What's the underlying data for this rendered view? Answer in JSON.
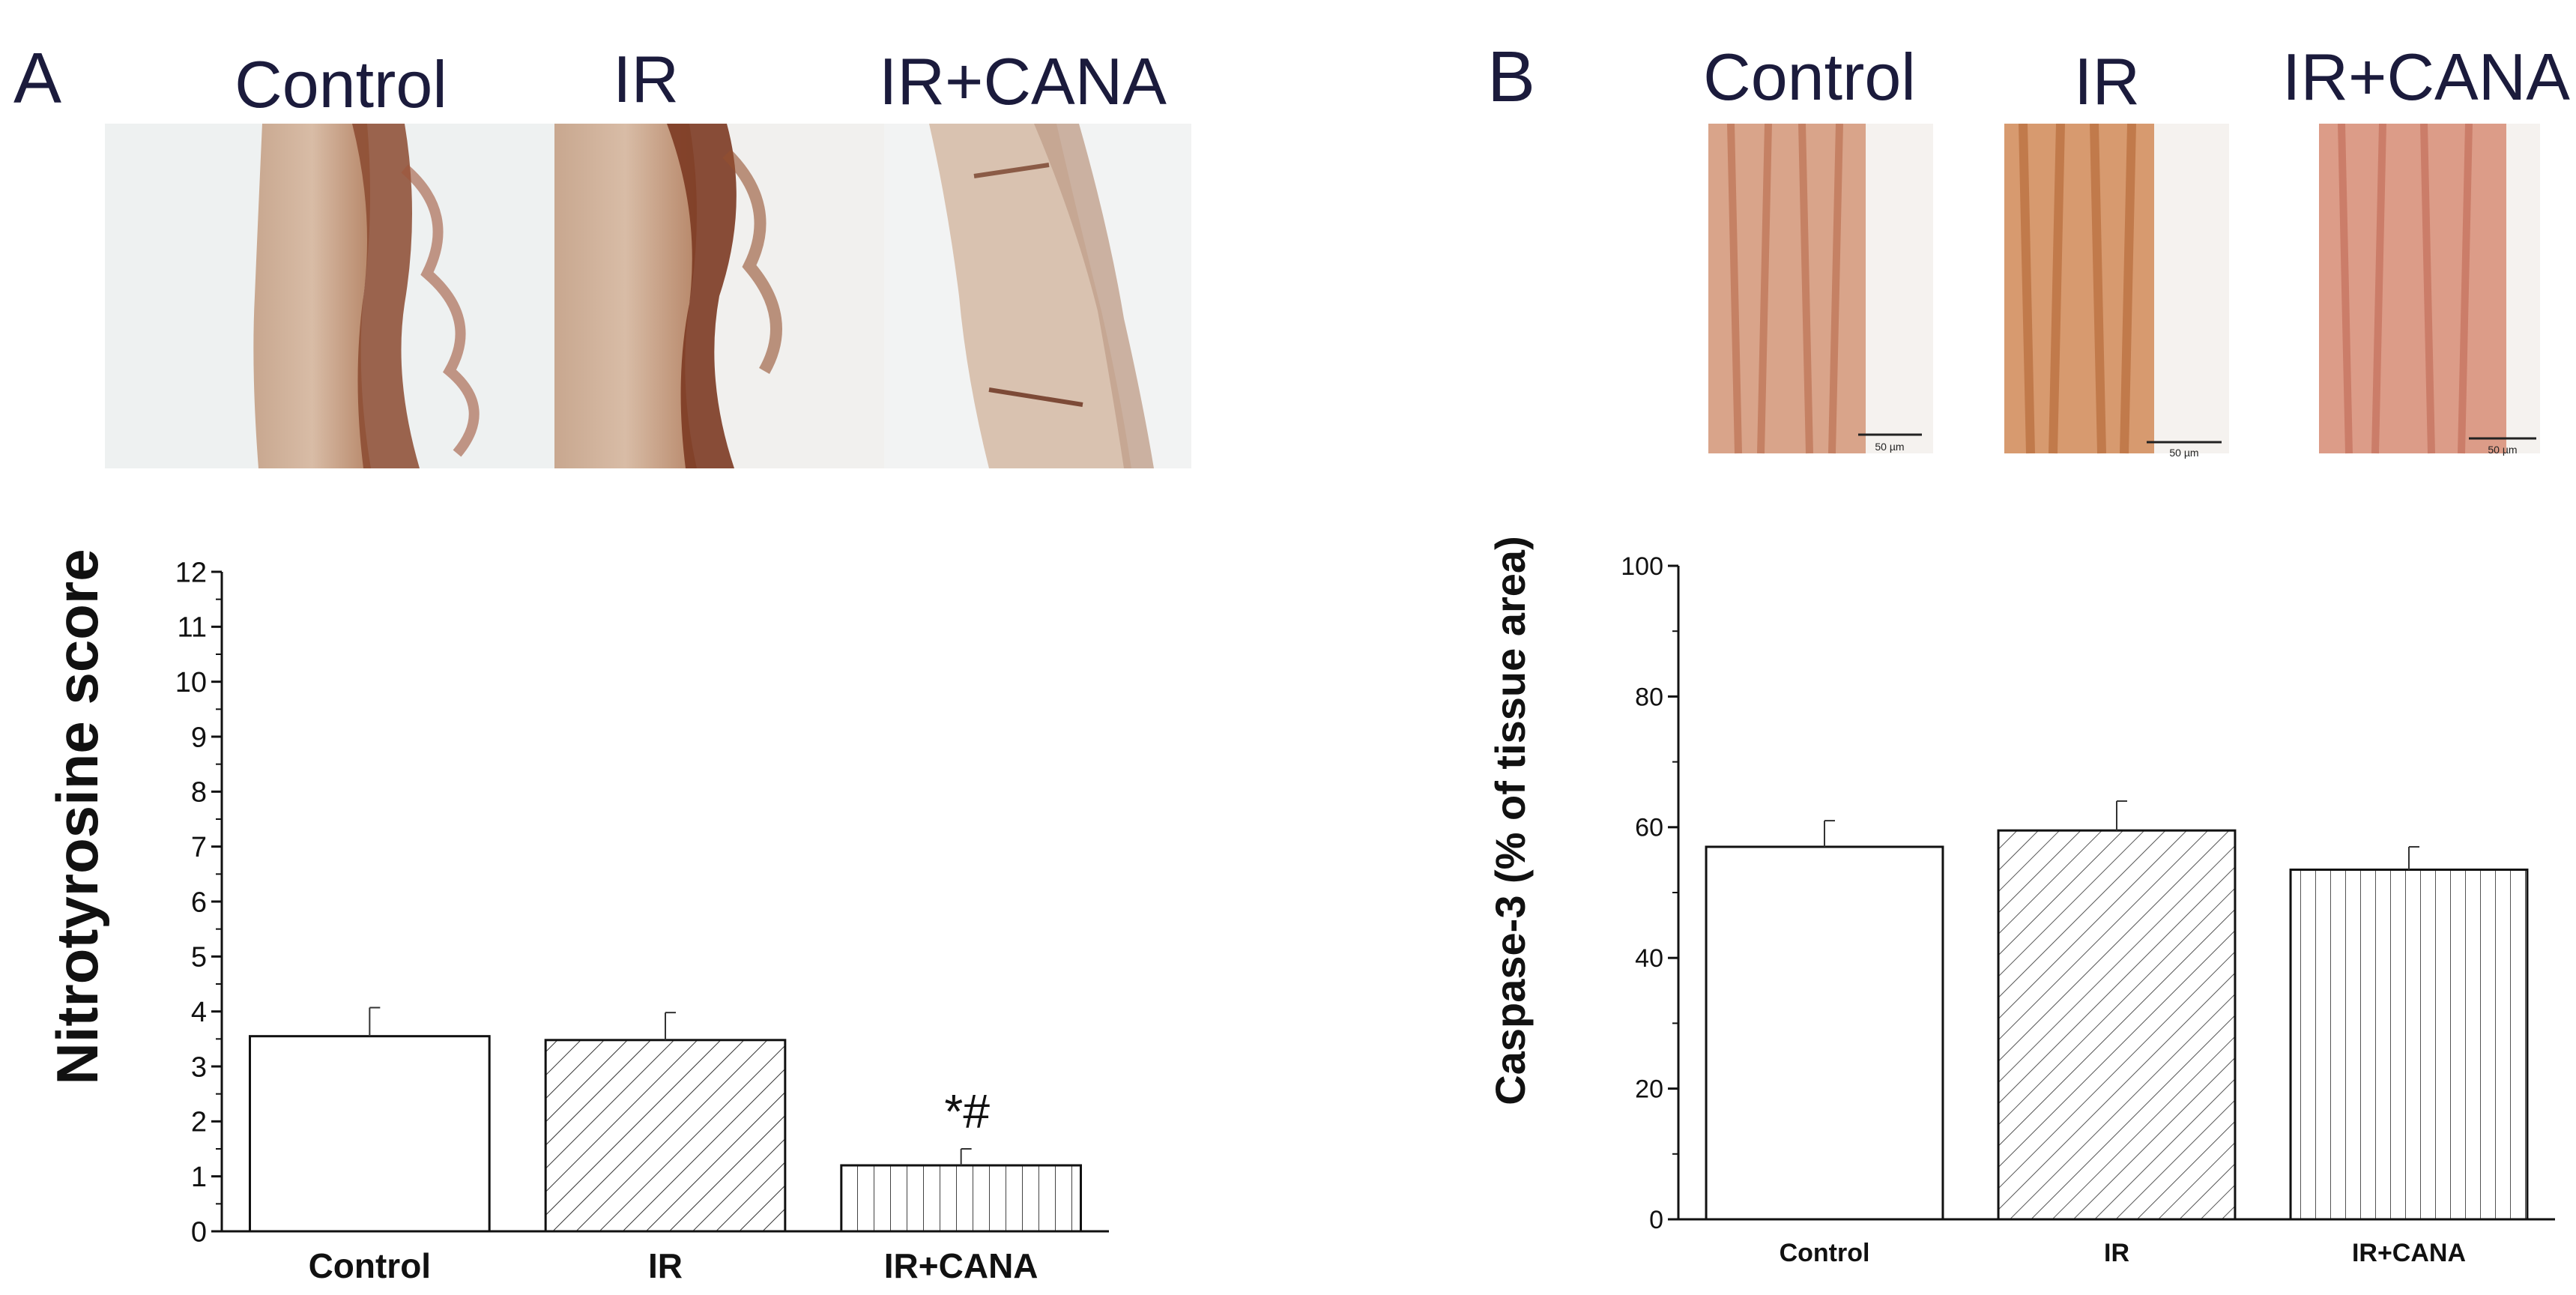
{
  "panels": {
    "A": {
      "letter": "A",
      "group_titles": [
        "Control",
        "IR",
        "IR+CANA"
      ]
    },
    "B": {
      "letter": "B",
      "group_titles": [
        "Control",
        "IR",
        "IR+CANA"
      ],
      "scale_bars": [
        "50 µm",
        "50 µm",
        "50 µm"
      ]
    }
  },
  "chart_data": [
    {
      "type": "bar",
      "panel": "A",
      "categories": [
        "Control",
        "IR",
        "IR+CANA"
      ],
      "values": [
        3.55,
        3.48,
        1.2
      ],
      "errors": [
        0.52,
        0.5,
        0.3
      ],
      "annotations": [
        {
          "category": "IR+CANA",
          "text": "*#"
        }
      ],
      "patterns": [
        "none",
        "diagonal",
        "vertical"
      ],
      "title": "",
      "xlabel": "",
      "ylabel": "Nitrotyrosine score",
      "ylim": [
        0,
        12
      ],
      "yticks": [
        0,
        1,
        2,
        3,
        4,
        5,
        6,
        7,
        8,
        9,
        10,
        11,
        12
      ],
      "grid": false,
      "legend": "none"
    },
    {
      "type": "bar",
      "panel": "B",
      "categories": [
        "Control",
        "IR",
        "IR+CANA"
      ],
      "values": [
        57,
        59.5,
        53.5
      ],
      "errors": [
        4,
        4.5,
        3.5
      ],
      "patterns": [
        "none",
        "diagonal",
        "vertical"
      ],
      "title": "",
      "xlabel": "",
      "ylabel": "Caspase-3 (% of tissue area)",
      "ylim": [
        0,
        100
      ],
      "yticks": [
        0,
        20,
        40,
        60,
        80,
        100
      ],
      "grid": false,
      "legend": "none"
    }
  ]
}
